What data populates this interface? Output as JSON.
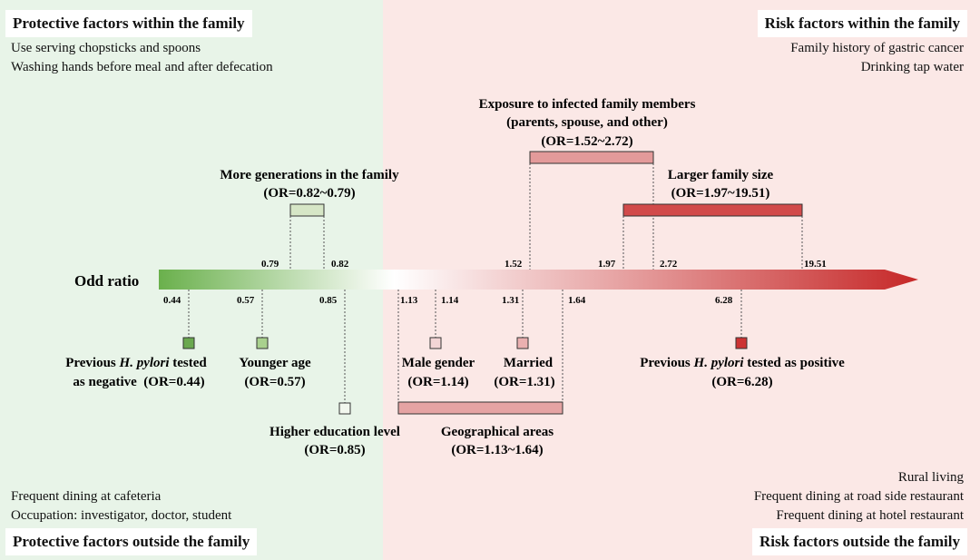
{
  "panels": {
    "top_left": {
      "title": "Protective factors within the family",
      "items": [
        "Use serving chopsticks and spoons",
        "Washing hands before meal and after defecation"
      ]
    },
    "top_right": {
      "title": "Risk factors within the family",
      "items": [
        "Family history of gastric cancer",
        "Drinking tap water"
      ]
    },
    "bottom_left": {
      "title": "Protective factors outside the family",
      "items": [
        "Frequent dining at cafeteria",
        "Occupation: investigator, doctor, student"
      ]
    },
    "bottom_right": {
      "title": "Risk factors outside the family",
      "items": [
        "Rural living",
        "Frequent dining at road side restaurant",
        "Frequent dining at hotel restaurant"
      ]
    }
  },
  "axis": {
    "label": "Odd ratio",
    "gradient_colors": [
      "#6ab04c",
      "#ffffff",
      "#c62828"
    ]
  },
  "upper_ticks": [
    "0.79",
    "0.82",
    "1.52",
    "1.97",
    "2.72",
    "19.51"
  ],
  "lower_ticks": [
    "0.44",
    "0.57",
    "0.85",
    "1.13",
    "1.14",
    "1.31",
    "1.64",
    "6.28"
  ],
  "upper_factors": {
    "generations": {
      "line1": "More generations in the family",
      "line2": "(OR=0.82~0.79)",
      "color": "#d6e6c6"
    },
    "exposure": {
      "line1": "Exposure to infected family members",
      "line2": "(parents, spouse, and other)",
      "line3": "(OR=1.52~2.72)",
      "color": "#e39a9a"
    },
    "family_size": {
      "line1": "Larger family size",
      "line2": "(OR=1.97~19.51)",
      "color": "#d14a4a"
    }
  },
  "lower_factors": {
    "prev_negative": {
      "line1_pre": "Previous ",
      "line1_italic": "H. pylori",
      "line1_post": " tested",
      "line2": "as negative  (OR=0.44)",
      "color": "#6aa84f"
    },
    "younger_age": {
      "line1": "Younger age",
      "line2": "(OR=0.57)",
      "color": "#a9d18e"
    },
    "education": {
      "line1": "Higher education level",
      "line2": "(OR=0.85)",
      "color": "#f2f7ee"
    },
    "male_gender": {
      "line1": "Male gender",
      "line2": "(OR=1.14)",
      "color": "#f3d5d5"
    },
    "married": {
      "line1": "Married",
      "line2": "(OR=1.31)",
      "color": "#eab0b0"
    },
    "geographical": {
      "line1": "Geographical areas",
      "line2": "(OR=1.13~1.64)",
      "color": "#e5a3a3"
    },
    "prev_positive": {
      "line1_pre": "Previous ",
      "line1_italic": "H. pylori",
      "line1_post": " tested as positive",
      "line2": "(OR=6.28)",
      "color": "#cc3333"
    }
  }
}
